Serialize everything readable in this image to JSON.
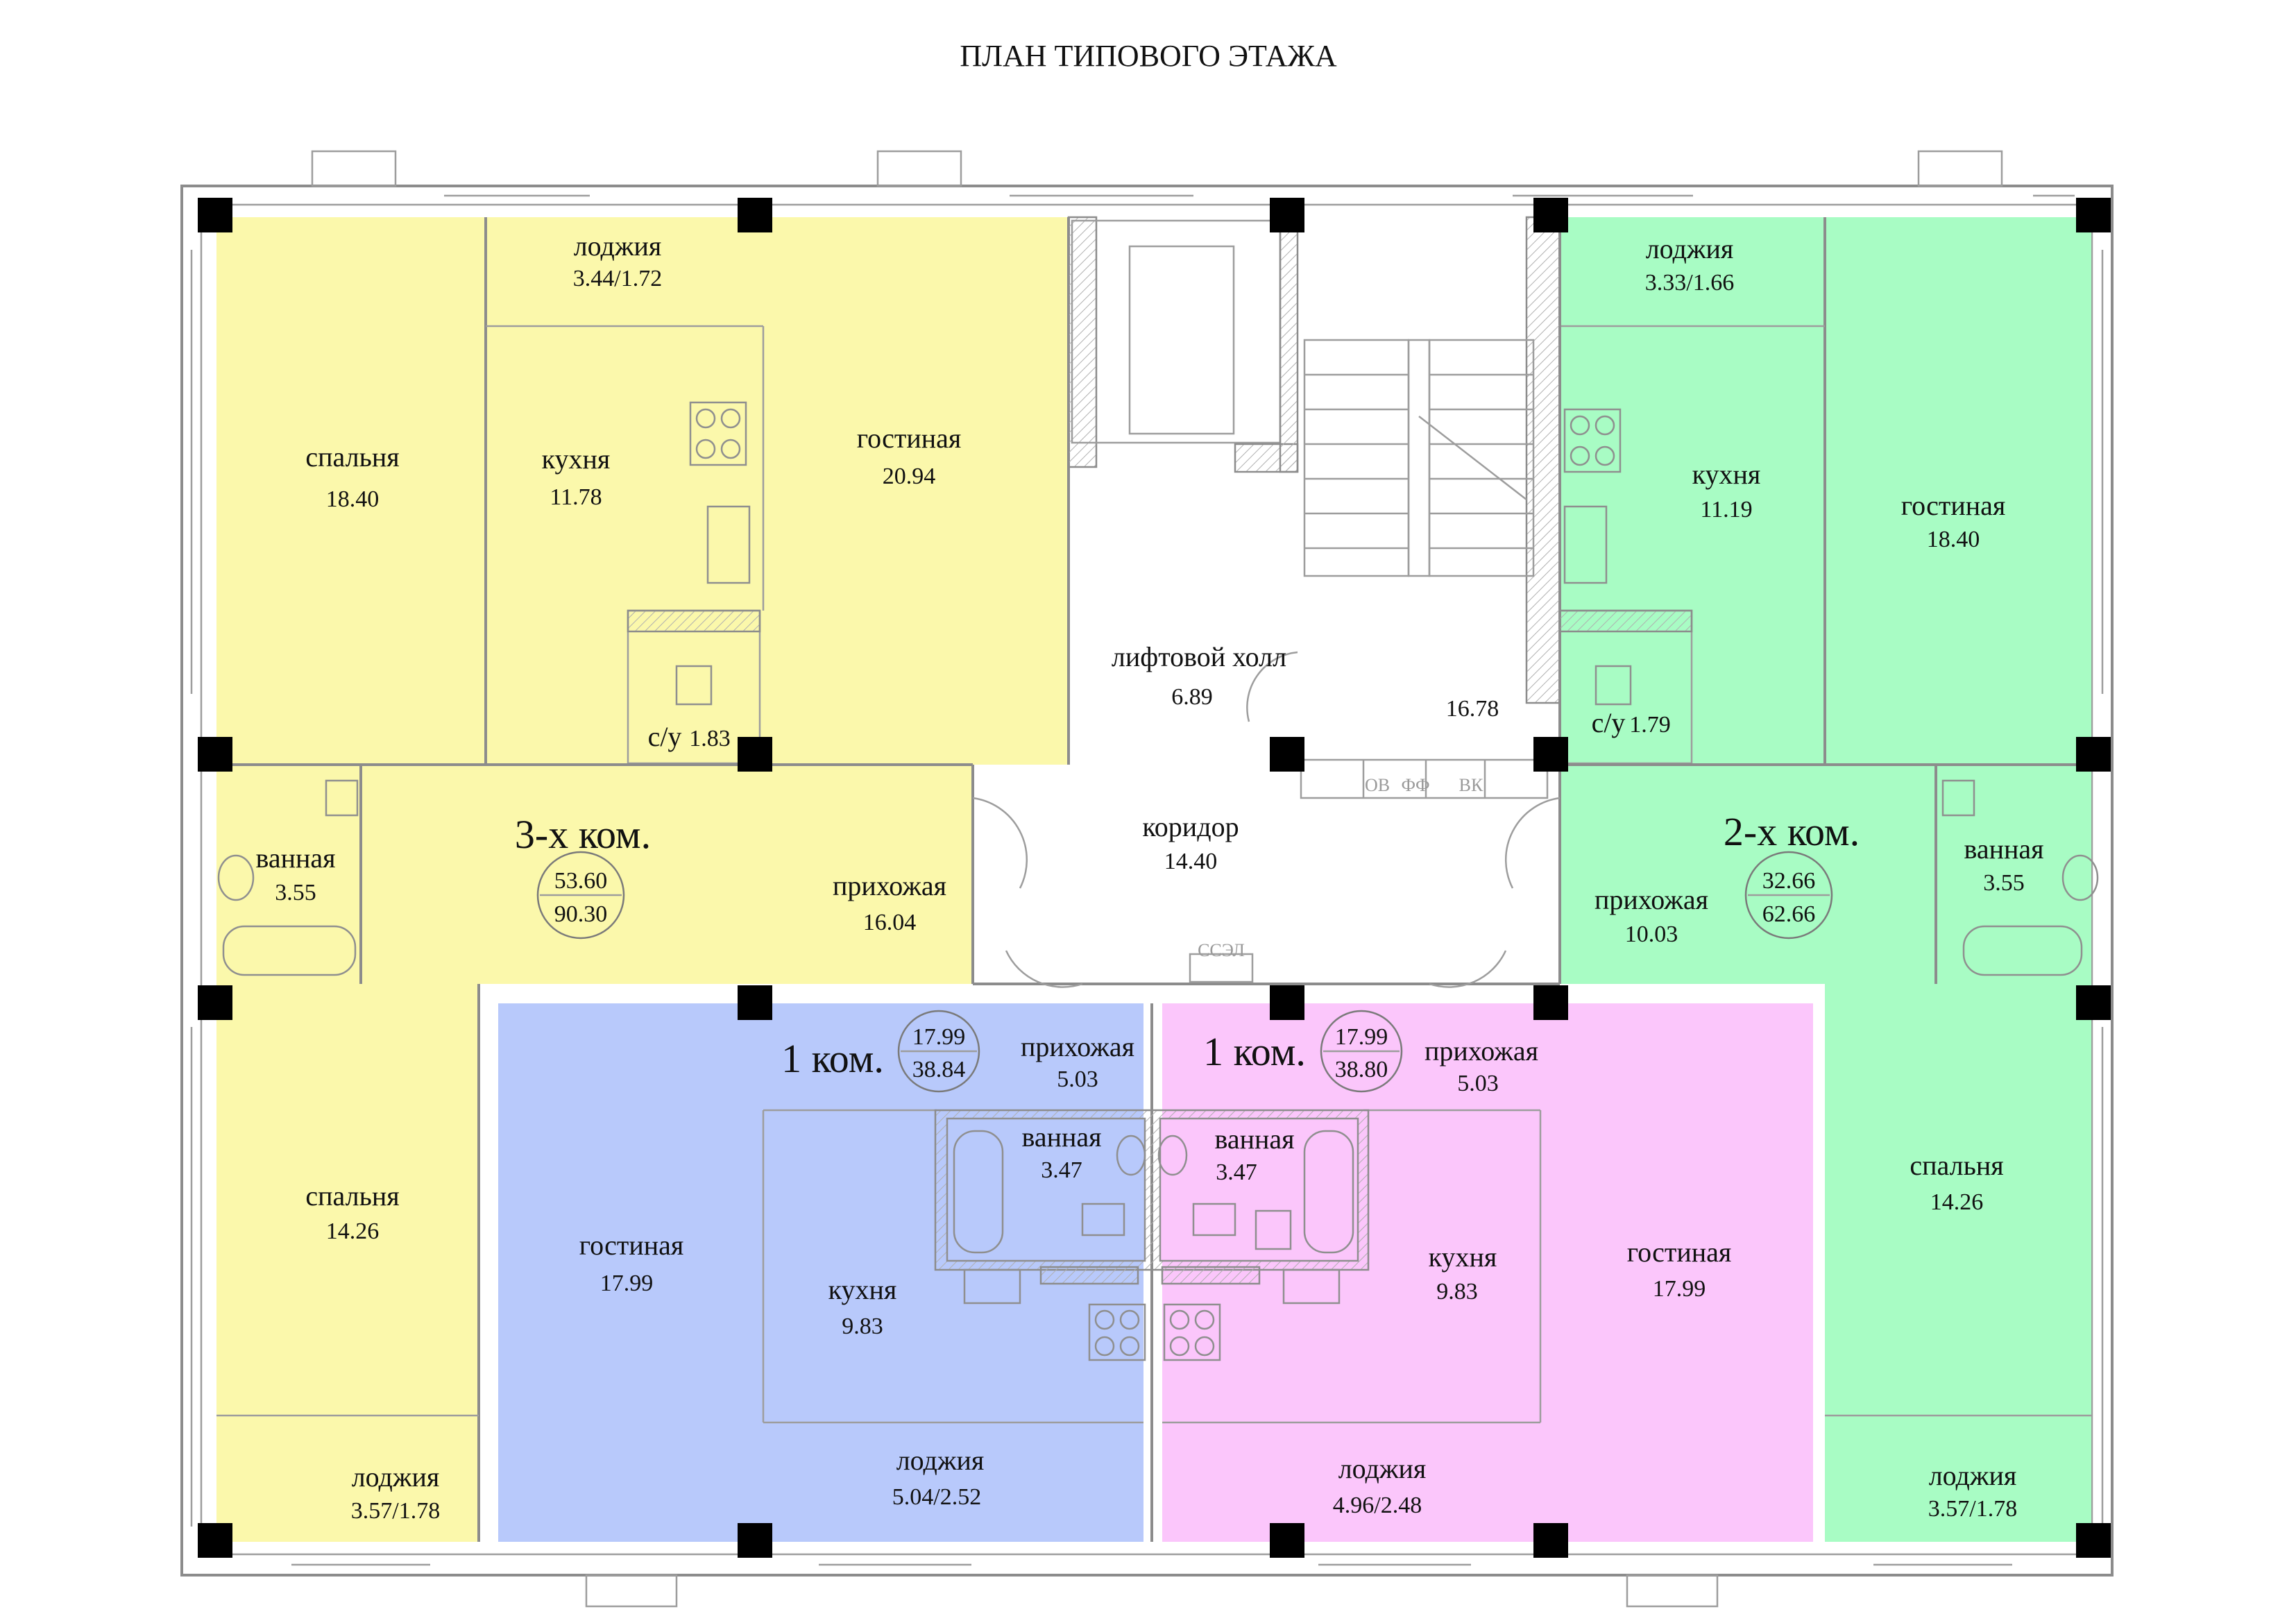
{
  "title": "ПЛАН ТИПОВОГО ЭТАЖА",
  "colors": {
    "apt3": "#fbf8ab",
    "apt2": "#a8fcc4",
    "apt1_left": "#b8c9fb",
    "apt1_right": "#fbc6fb",
    "columns": "#000000",
    "walls": "#8c8c8c"
  },
  "apartments": {
    "apt3": {
      "label": "3-х ком.",
      "area_living": "53.60",
      "area_total": "90.30",
      "rooms": [
        {
          "name": "лоджия",
          "area": "3.44/1.72"
        },
        {
          "name": "спальня",
          "area": "18.40"
        },
        {
          "name": "кухня",
          "area": "11.78"
        },
        {
          "name": "гостиная",
          "area": "20.94"
        },
        {
          "name": "с/у",
          "area": "1.83"
        },
        {
          "name": "ванная",
          "area": "3.55"
        },
        {
          "name": "прихожая",
          "area": "16.04"
        },
        {
          "name": "спальня",
          "area": "14.26"
        },
        {
          "name": "лоджия",
          "area": "3.57/1.78"
        }
      ]
    },
    "apt2": {
      "label": "2-х ком.",
      "area_living": "32.66",
      "area_total": "62.66",
      "rooms": [
        {
          "name": "лоджия",
          "area": "3.33/1.66"
        },
        {
          "name": "кухня",
          "area": "11.19"
        },
        {
          "name": "гостиная",
          "area": "18.40"
        },
        {
          "name": "с/у",
          "area": "1.79"
        },
        {
          "name": "ванная",
          "area": "3.55"
        },
        {
          "name": "прихожая",
          "area": "10.03"
        },
        {
          "name": "спальня",
          "area": "14.26"
        },
        {
          "name": "лоджия",
          "area": "3.57/1.78"
        }
      ]
    },
    "apt1_left": {
      "label": "1 ком.",
      "area_living": "17.99",
      "area_total": "38.84",
      "rooms": [
        {
          "name": "прихожая",
          "area": "5.03"
        },
        {
          "name": "ванная",
          "area": "3.47"
        },
        {
          "name": "гостиная",
          "area": "17.99"
        },
        {
          "name": "кухня",
          "area": "9.83"
        },
        {
          "name": "лоджия",
          "area": "5.04/2.52"
        }
      ]
    },
    "apt1_right": {
      "label": "1 ком.",
      "area_living": "17.99",
      "area_total": "38.80",
      "rooms": [
        {
          "name": "прихожая",
          "area": "5.03"
        },
        {
          "name": "ванная",
          "area": "3.47"
        },
        {
          "name": "кухня",
          "area": "9.83"
        },
        {
          "name": "гостиная",
          "area": "17.99"
        },
        {
          "name": "лоджия",
          "area": "4.96/2.48"
        }
      ]
    }
  },
  "common": {
    "lift_hall": {
      "name": "лифтовой холл",
      "area": "6.89"
    },
    "stair_area": "16.78",
    "corridor": {
      "name": "коридор",
      "area": "14.40"
    },
    "shaft_labels": [
      "ОВ",
      "ФФ",
      "ВК"
    ],
    "panel_label": "ССЭЛ"
  }
}
